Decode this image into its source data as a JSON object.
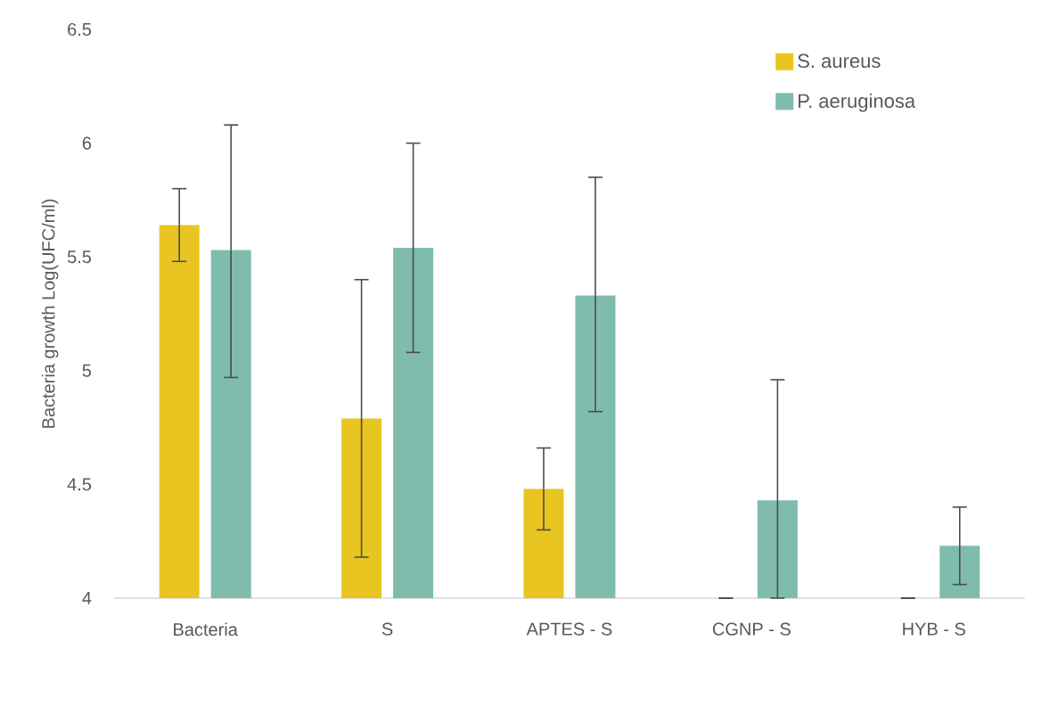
{
  "chart_data": {
    "type": "bar",
    "ylabel": "Bacteria growth Log(UFC/ml)",
    "categories": [
      "Bacteria",
      "S",
      "APTES - S",
      "CGNP - S",
      "HYB - S"
    ],
    "series": [
      {
        "name": "S. aureus",
        "color": "#e8c520",
        "values": [
          5.64,
          4.79,
          4.48,
          4.0,
          4.0
        ],
        "errors": [
          [
            5.48,
            5.8
          ],
          [
            4.18,
            5.4
          ],
          [
            4.3,
            4.66
          ],
          null,
          null
        ]
      },
      {
        "name": "P. aeruginosa",
        "color": "#7fbcad",
        "values": [
          5.53,
          5.54,
          5.33,
          4.43,
          4.23
        ],
        "errors": [
          [
            4.97,
            6.08
          ],
          [
            5.08,
            6.0
          ],
          [
            4.82,
            5.85
          ],
          [
            4.0,
            4.96
          ],
          [
            4.06,
            4.4
          ]
        ]
      }
    ],
    "ylim": [
      4,
      6.5
    ],
    "yticks": [
      4,
      4.5,
      5,
      5.5,
      6,
      6.5
    ],
    "grid": false,
    "legend": "top right"
  }
}
